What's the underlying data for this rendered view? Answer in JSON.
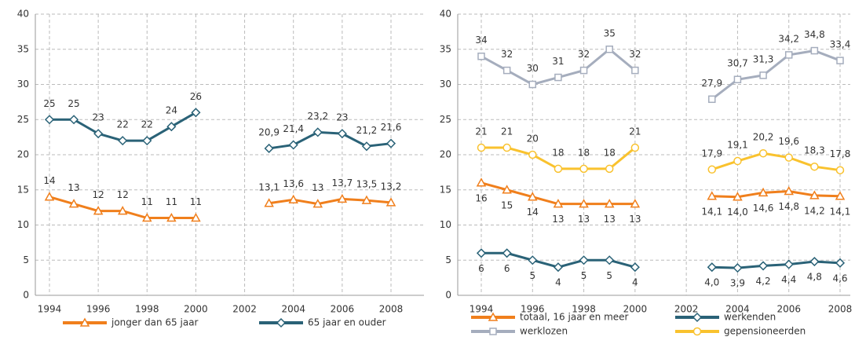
{
  "chart_data": [
    {
      "type": "line",
      "categories": [
        "1994",
        null,
        "1996",
        null,
        "1998",
        null,
        "2000",
        null,
        "2002",
        null,
        "2004",
        null,
        "2006",
        null,
        "2008"
      ],
      "ylim": [
        0,
        40
      ],
      "yticks": [
        0,
        5,
        10,
        15,
        20,
        25,
        30,
        35,
        40
      ],
      "grid": true,
      "legend": "bottom",
      "series": [
        {
          "name": "jonger dan 65 jaar",
          "color": "#f07f1c",
          "marker": "triangle",
          "values": [
            14,
            13,
            12,
            12,
            11,
            11,
            11,
            null,
            null,
            13.1,
            13.6,
            13,
            13.7,
            13.5,
            13.2
          ],
          "value_labels": [
            "14",
            "13",
            "12",
            "12",
            "11",
            "11",
            "11",
            null,
            null,
            "13,1",
            "13,6",
            "13",
            "13,7",
            "13,5",
            "13,2"
          ]
        },
        {
          "name": "65 jaar en ouder",
          "color": "#2a6277",
          "marker": "diamond",
          "values": [
            25,
            25,
            23,
            22,
            22,
            24,
            26,
            null,
            null,
            20.9,
            21.4,
            23.2,
            23,
            21.2,
            21.6
          ],
          "value_labels": [
            "25",
            "25",
            "23",
            "22",
            "22",
            "24",
            "26",
            null,
            null,
            "20,9",
            "21,4",
            "23,2",
            "23",
            "21,2",
            "21,6"
          ]
        }
      ]
    },
    {
      "type": "line",
      "categories": [
        "1994",
        null,
        "1996",
        null,
        "1998",
        null,
        "2000",
        null,
        "2002",
        null,
        "2004",
        null,
        "2006",
        null,
        "2008"
      ],
      "ylim": [
        0,
        40
      ],
      "yticks": [
        0,
        5,
        10,
        15,
        20,
        25,
        30,
        35,
        40
      ],
      "grid": true,
      "legend": "bottom",
      "series": [
        {
          "name": "totaal, 16 jaar en meer",
          "color": "#f07f1c",
          "marker": "triangle",
          "values": [
            16,
            15,
            14,
            13,
            13,
            13,
            13,
            null,
            null,
            14.1,
            14.0,
            14.6,
            14.8,
            14.2,
            14.1
          ],
          "value_labels": [
            "16",
            "15",
            "14",
            "13",
            "13",
            "13",
            "13",
            null,
            null,
            "14,1",
            "14,0",
            "14,6",
            "14,8",
            "14,2",
            "14,1"
          ]
        },
        {
          "name": "werkenden",
          "color": "#2a6277",
          "marker": "diamond",
          "values": [
            6,
            6,
            5,
            4,
            5,
            5,
            4,
            null,
            null,
            4.0,
            3.9,
            4.2,
            4.4,
            4.8,
            4.6
          ],
          "value_labels": [
            "6",
            "6",
            "5",
            "4",
            "5",
            "5",
            "4",
            null,
            null,
            "4,0",
            "3,9",
            "4,2",
            "4,4",
            "4,8",
            "4,6"
          ]
        },
        {
          "name": "werklozen",
          "color": "#a5adbd",
          "marker": "square",
          "values": [
            34,
            32,
            30,
            31,
            32,
            35,
            32,
            null,
            null,
            27.9,
            30.7,
            31.3,
            34.2,
            34.8,
            33.4
          ],
          "value_labels": [
            "34",
            "32",
            "30",
            "31",
            "32",
            "35",
            "32",
            null,
            null,
            "27,9",
            "30,7",
            "31,3",
            "34,2",
            "34,8",
            "33,4"
          ]
        },
        {
          "name": "gepensioneerden",
          "color": "#f9c22e",
          "marker": "circle",
          "values": [
            21,
            21,
            20,
            18,
            18,
            18,
            21,
            null,
            null,
            17.9,
            19.1,
            20.2,
            19.6,
            18.3,
            17.8
          ],
          "value_labels": [
            "21",
            "21",
            "20",
            "18",
            "18",
            "18",
            "21",
            null,
            null,
            "17,9",
            "19,1",
            "20,2",
            "19,6",
            "18,3",
            "17,8"
          ]
        }
      ]
    }
  ]
}
